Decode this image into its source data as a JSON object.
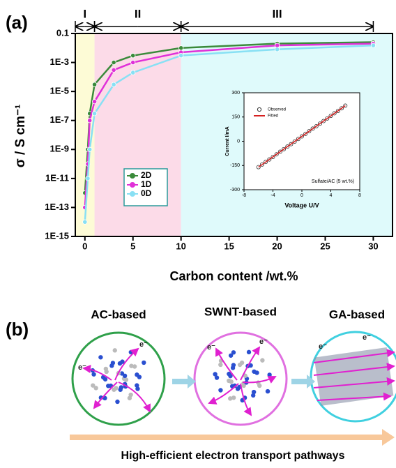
{
  "figure": {
    "panel_a": "(a)",
    "panel_b": "(b)",
    "diagram": {
      "labels": [
        "AC-based",
        "SWNT-based",
        "GA-based"
      ],
      "electron": "e⁻",
      "caption": "High-efficient electron transport pathways"
    }
  },
  "chart_data": [
    {
      "type": "line",
      "x_label": "Carbon content /wt.%",
      "y_label": "σ / S cm⁻¹",
      "log_y": true,
      "xlim": [
        -1,
        32
      ],
      "xticks": [
        0,
        5,
        10,
        15,
        20,
        25,
        30
      ],
      "ylim": [
        1e-15,
        0.1
      ],
      "yticks": [
        {
          "value": 1e-15,
          "label": "1E-15"
        },
        {
          "value": 1e-13,
          "label": "1E-13"
        },
        {
          "value": 1e-11,
          "label": "1E-11"
        },
        {
          "value": 1e-09,
          "label": "1E-9"
        },
        {
          "value": 1e-07,
          "label": "1E-7"
        },
        {
          "value": 1e-05,
          "label": "1E-5"
        },
        {
          "value": 0.001,
          "label": "1E-3"
        },
        0.1
      ],
      "regions": [
        {
          "label": "I",
          "xlim": [
            -1,
            1
          ],
          "color": "#fdfbd6"
        },
        {
          "label": "II",
          "xlim": [
            1,
            10
          ],
          "color": "#fcdbe8"
        },
        {
          "label": "III",
          "xlim": [
            10,
            30
          ],
          "color": "#dffafb"
        }
      ],
      "legend": "center left",
      "x": [
        0,
        0.3,
        0.5,
        1,
        3,
        5,
        10,
        20,
        30
      ],
      "series": [
        {
          "name": "2D",
          "color": "#3a8a3a",
          "values": [
            1e-12,
            1e-09,
            3e-07,
            3e-05,
            0.001,
            0.003,
            0.01,
            0.02,
            0.025
          ]
        },
        {
          "name": "1D",
          "color": "#e030d8",
          "values": [
            1e-13,
            1e-10,
            1e-07,
            2e-06,
            0.0003,
            0.001,
            0.005,
            0.015,
            0.02
          ]
        },
        {
          "name": "0D",
          "color": "#88e0f4",
          "values": [
            1e-14,
            1e-11,
            1e-09,
            3e-07,
            3e-05,
            0.0002,
            0.003,
            0.008,
            0.015
          ]
        }
      ]
    },
    {
      "type": "scatter",
      "x_label": "Voltage U/V",
      "y_label": "Current I/mA",
      "annotation": "Sulfate/AC (5 wt.%)",
      "xlim": [
        -8,
        8
      ],
      "xticks": [
        -8,
        -4,
        0,
        4,
        8
      ],
      "ylim": [
        -300,
        300
      ],
      "yticks": [
        -300,
        -150,
        0,
        150,
        300
      ],
      "legend": "upper left",
      "series": [
        {
          "name": "Observed",
          "color": "#333333",
          "mode": "markers",
          "x": [
            -6,
            -5.5,
            -5,
            -4.5,
            -4,
            -3.5,
            -3,
            -2.5,
            -2,
            -1.5,
            -1,
            -0.5,
            0,
            0.5,
            1,
            1.5,
            2,
            2.5,
            3,
            3.5,
            4,
            4.5,
            5,
            5.5,
            6
          ],
          "values": [
            -160,
            -144,
            -128,
            -113,
            -97,
            -81,
            -65,
            -49,
            -33,
            -18,
            -2,
            14,
            30,
            46,
            62,
            78,
            93,
            109,
            125,
            141,
            157,
            173,
            188,
            204,
            220
          ]
        },
        {
          "name": "Fitted",
          "color": "#d62020",
          "mode": "line",
          "x": [
            -6,
            6
          ],
          "values": [
            -160,
            220
          ]
        }
      ]
    }
  ]
}
